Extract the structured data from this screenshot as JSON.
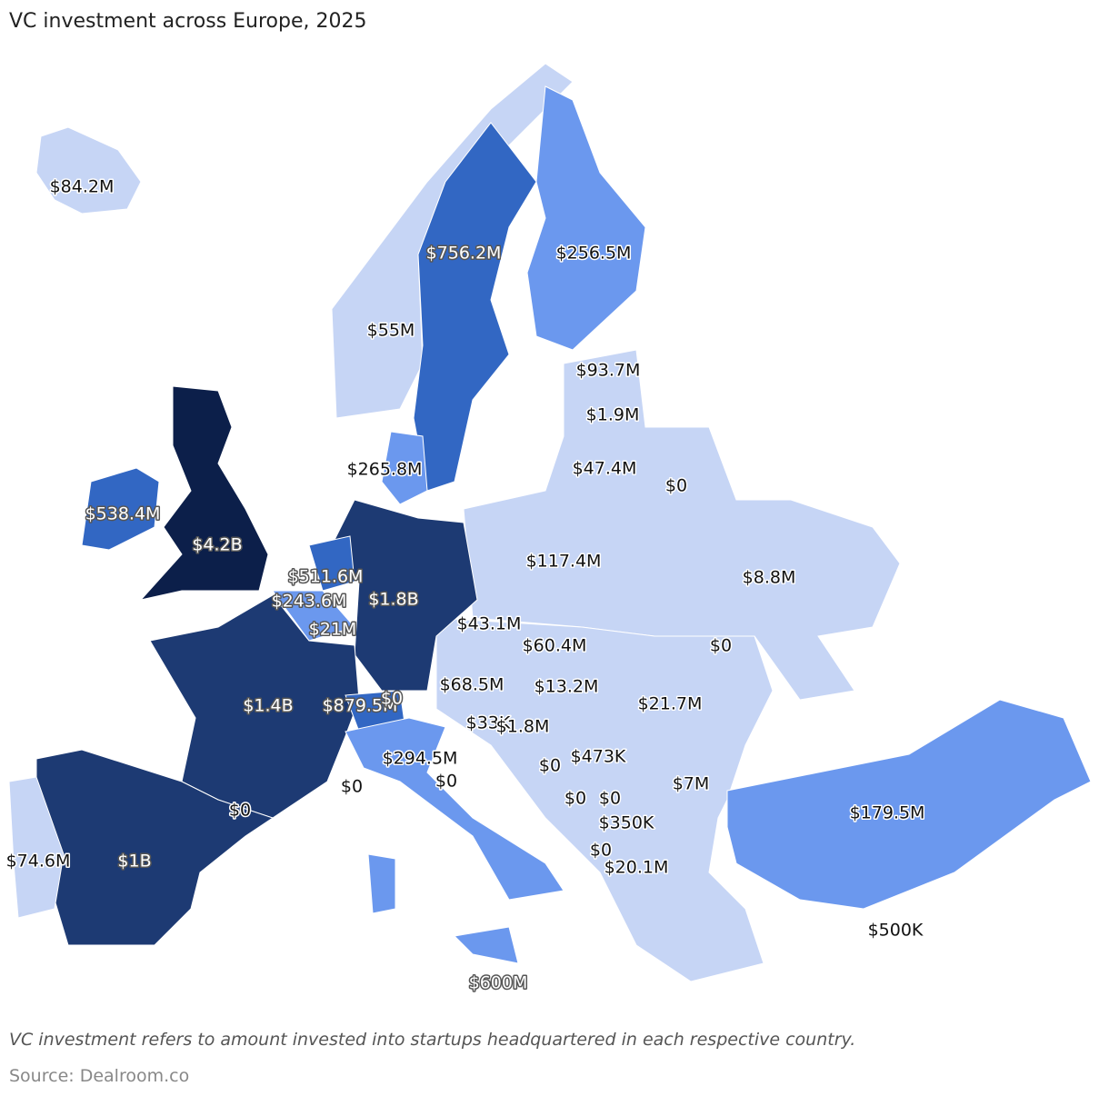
{
  "title": "VC investment across Europe, 2025",
  "labels": [
    "$84.2M",
    "$756.2M",
    "$256.5M",
    "$55M",
    "$93.7M",
    "$1.9M",
    "$47.4M",
    "$0",
    "$265.8M",
    "$538.4M",
    "$4.2B",
    "$511.6M",
    "$117.4M",
    "$8.8M",
    "$243.6M",
    "$1.8B",
    "$21M",
    "$43.1M",
    "$60.4M",
    "$0",
    "$1.4B",
    "$68.5M",
    "$13.2M",
    "$21.7M",
    "$879.5M",
    "$0",
    "$33K",
    "$1.8M",
    "$294.5M",
    "$0",
    "$473K",
    "$0",
    "$0",
    "$7M",
    "$0",
    "$0",
    "$0",
    "$179.5M",
    "$350K",
    "$74.6M",
    "$1B",
    "$0",
    "$20.1M",
    "$500K",
    "$600M"
  ],
  "note": "VC investment refers to amount invested into startups headquartered in each respective country.",
  "source": "Source: Dealroom.co"
}
